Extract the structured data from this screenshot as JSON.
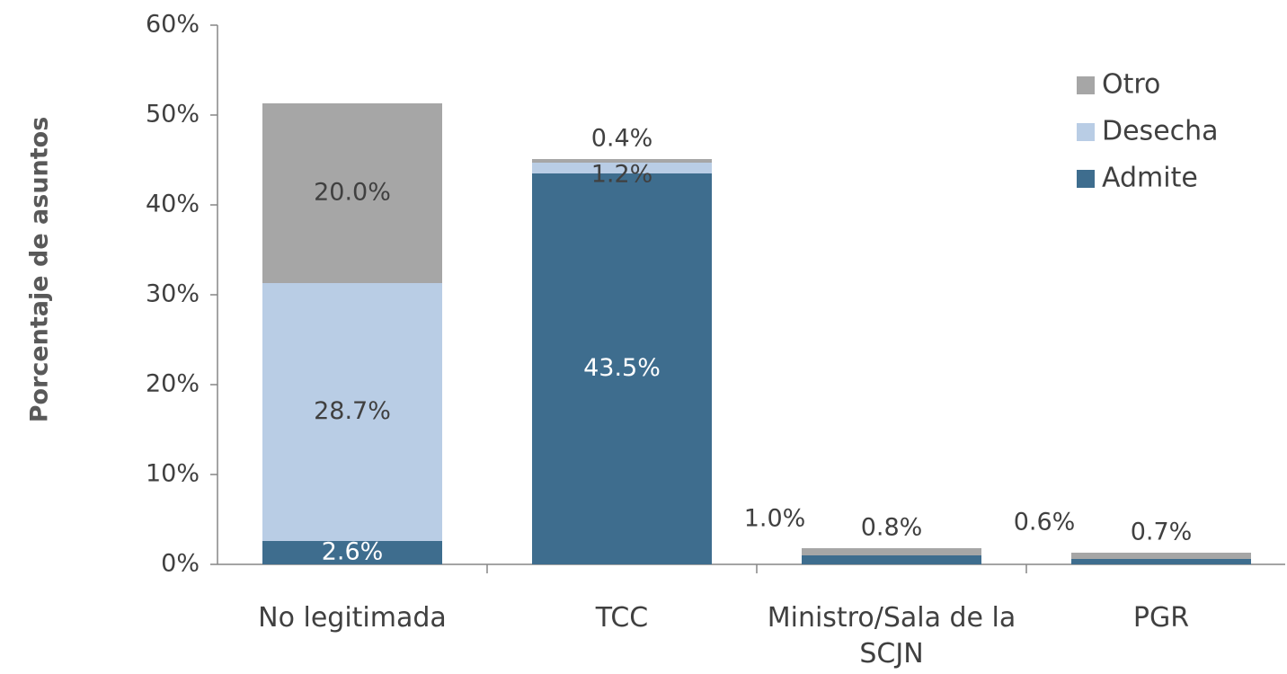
{
  "chart_data": {
    "type": "stacked_bar",
    "y_label": "Porcentaje de asuntos",
    "categories": [
      "No legitimada",
      "TCC",
      "Ministro/Sala de la SCJN",
      "PGR"
    ],
    "series": [
      {
        "name": "Admite",
        "color": "#3e6d8e",
        "values": [
          2.6,
          43.5,
          1.0,
          0.6
        ],
        "value_labels": [
          "2.6%",
          "43.5%",
          "1.0%",
          "0.6%"
        ]
      },
      {
        "name": "Desecha",
        "color": "#b9cde5",
        "values": [
          28.7,
          1.2,
          null,
          null
        ],
        "value_labels": [
          "28.7%",
          "1.2%",
          null,
          null
        ]
      },
      {
        "name": "Otro",
        "color": "#a6a6a6",
        "values": [
          20.0,
          0.4,
          0.8,
          0.7
        ],
        "value_labels": [
          "20.0%",
          "0.4%",
          "0.8%",
          "0.7%"
        ]
      }
    ],
    "ylim": [
      0,
      60
    ],
    "yticks": [
      {
        "value": 0,
        "label": "0%"
      },
      {
        "value": 10,
        "label": "10%"
      },
      {
        "value": 20,
        "label": "20%"
      },
      {
        "value": 30,
        "label": "30%"
      },
      {
        "value": 40,
        "label": "40%"
      },
      {
        "value": 50,
        "label": "50%"
      },
      {
        "value": 60,
        "label": "60%"
      }
    ],
    "legend": "top-right"
  }
}
